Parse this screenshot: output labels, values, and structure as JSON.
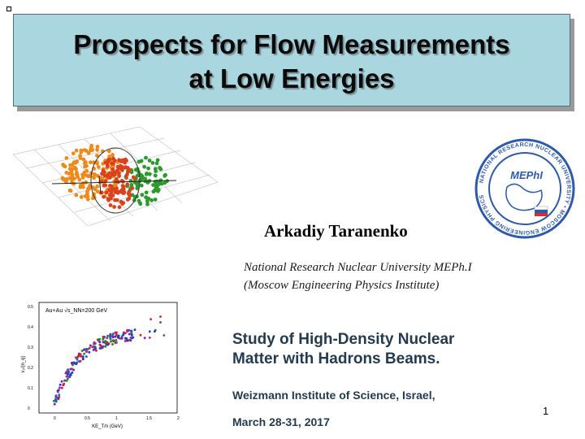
{
  "title": {
    "line1": "Prospects for Flow Measurements",
    "line2": "at Low Energies"
  },
  "author": "Arkadiy Taranenko",
  "affiliation": {
    "line1": "National Research Nuclear University MEPh.I",
    "line2": "(Moscow Engineering Physics Institute)"
  },
  "conference": {
    "line1": "Study of High-Density Nuclear",
    "line2": "Matter with Hadrons Beams."
  },
  "venue": "Weizmann Institute of Science, Israel,",
  "dates": "March 28-31, 2017",
  "page_number": "1",
  "logo": {
    "ring_top": "NATIONAL RESEARCH NUCLEAR UNIVERSITY • MOSCOW ENGINEERING PHYSICS",
    "ring_bottom": "MEPhI",
    "center": "MEPhI"
  },
  "plot": {
    "legend": "Au+Au √s_NN=200 GeV",
    "ylabel": "v₂/(n_q)",
    "xlabel": "KE_T/n (GeV)",
    "yticks": [
      "0",
      "0.1",
      "0.2",
      "0.3",
      "0.4",
      "0.5"
    ],
    "xticks": [
      "0",
      "0.5",
      "1",
      "1.5",
      "2"
    ]
  },
  "colors": {
    "title_bg": "#a9d6df",
    "body_text": "#243b4f",
    "logo_blue": "#2e5aa8"
  }
}
